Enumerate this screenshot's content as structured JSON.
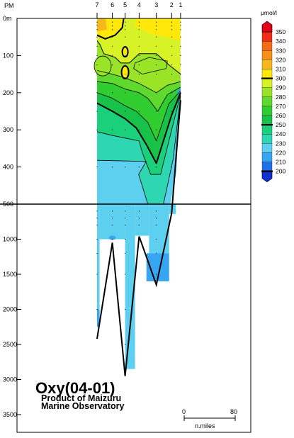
{
  "chart_data": {
    "type": "heatmap",
    "title": "Oxy(04-01)",
    "subtitle_lines": [
      "Product of Maizuru",
      "Marine Observatory"
    ],
    "station_axis_label": "PM",
    "stations": [
      {
        "id": "7",
        "dist_nm": 0,
        "bottom_depth_m": 2420
      },
      {
        "id": "6",
        "dist_nm": 24,
        "bottom_depth_m": 1050
      },
      {
        "id": "5",
        "dist_nm": 44,
        "bottom_depth_m": 2950
      },
      {
        "id": "4",
        "dist_nm": 66,
        "bottom_depth_m": 960
      },
      {
        "id": "3",
        "dist_nm": 93,
        "bottom_depth_m": 1650
      },
      {
        "id": "2",
        "dist_nm": 117,
        "bottom_depth_m": 630
      },
      {
        "id": "1",
        "dist_nm": 131,
        "bottom_depth_m": 220
      }
    ],
    "upper_depth_ticks": [
      {
        "value": 0,
        "label": "0m"
      },
      {
        "value": 100,
        "label": "100"
      },
      {
        "value": 200,
        "label": "200"
      },
      {
        "value": 300,
        "label": "300"
      },
      {
        "value": 400,
        "label": "400"
      },
      {
        "value": 500,
        "label": "500"
      }
    ],
    "lower_depth_ticks": [
      {
        "value": 1000,
        "label": "1000"
      },
      {
        "value": 1500,
        "label": "1500"
      },
      {
        "value": 2000,
        "label": "2000"
      },
      {
        "value": 2500,
        "label": "2500"
      },
      {
        "value": 3000,
        "label": "3000"
      },
      {
        "value": 3500,
        "label": "3500"
      }
    ],
    "depth_scale_break_m": 500,
    "colorbar": {
      "unit": "μmol/l",
      "levels": [
        200,
        210,
        220,
        230,
        240,
        250,
        260,
        270,
        280,
        290,
        300,
        310,
        320,
        330,
        340,
        350
      ],
      "colors": [
        "#1030d0",
        "#1f70e8",
        "#36a6f2",
        "#5dd0f0",
        "#2ed6b2",
        "#1bd07a",
        "#18c248",
        "#30cc30",
        "#5fd92d",
        "#9ae428",
        "#d8f228",
        "#ffe80a",
        "#f7b81c",
        "#f59018",
        "#f36b18",
        "#ef2c14",
        "#e0001a"
      ],
      "bold_levels": [
        200,
        250,
        300
      ]
    },
    "scale_bar": {
      "labels": [
        "0",
        "80"
      ],
      "unit": "n.miles"
    }
  }
}
